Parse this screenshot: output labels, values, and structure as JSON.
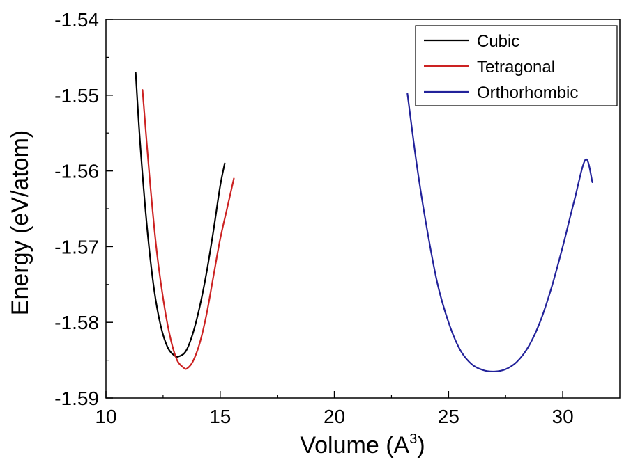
{
  "chart_data": {
    "type": "line",
    "xlabel": "Volume (A",
    "xlabel_sup": "3",
    "xlabel_close": ")",
    "ylabel": "Energy (eV/atom)",
    "xlim": [
      10,
      32.5
    ],
    "ylim": [
      -1.59,
      -1.54
    ],
    "x_ticks": [
      10,
      15,
      20,
      25,
      30
    ],
    "x_tick_labels": [
      "10",
      "15",
      "20",
      "25",
      "30"
    ],
    "y_ticks": [
      -1.59,
      -1.58,
      -1.57,
      -1.56,
      -1.55,
      -1.54
    ],
    "y_tick_labels": [
      "-1.59",
      "-1.58",
      "-1.57",
      "-1.56",
      "-1.55",
      "-1.54"
    ],
    "legend_position": "top-right",
    "series": [
      {
        "name": "Cubic",
        "color": "#000000",
        "x": [
          11.3,
          11.5,
          11.8,
          12.1,
          12.4,
          12.7,
          13.0,
          13.2,
          13.5,
          13.8,
          14.1,
          14.4,
          14.7,
          15.0,
          15.2
        ],
        "y": [
          -1.547,
          -1.5565,
          -1.5675,
          -1.5755,
          -1.5805,
          -1.5833,
          -1.5844,
          -1.5845,
          -1.5838,
          -1.5815,
          -1.578,
          -1.5735,
          -1.568,
          -1.562,
          -1.559
        ]
      },
      {
        "name": "Tetragonal",
        "color": "#cc2222",
        "x": [
          11.6,
          11.9,
          12.2,
          12.5,
          12.8,
          13.1,
          13.4,
          13.55,
          13.8,
          14.1,
          14.4,
          14.7,
          15.0,
          15.3,
          15.6
        ],
        "y": [
          -1.5493,
          -1.5605,
          -1.57,
          -1.5768,
          -1.5818,
          -1.5849,
          -1.586,
          -1.5861,
          -1.5852,
          -1.5828,
          -1.579,
          -1.574,
          -1.569,
          -1.565,
          -1.561
        ]
      },
      {
        "name": "Orthorhombic",
        "color": "#22229a",
        "x": [
          23.2,
          23.6,
          24.0,
          24.5,
          25.0,
          25.5,
          26.0,
          26.5,
          27.0,
          27.5,
          28.0,
          28.5,
          29.0,
          29.5,
          30.0,
          30.5,
          31.0,
          31.3
        ],
        "y": [
          -1.5498,
          -1.559,
          -1.5667,
          -1.5747,
          -1.58,
          -1.5836,
          -1.5855,
          -1.5863,
          -1.5865,
          -1.5862,
          -1.5852,
          -1.5832,
          -1.58,
          -1.5755,
          -1.57,
          -1.564,
          -1.5585,
          -1.5615
        ]
      }
    ]
  }
}
